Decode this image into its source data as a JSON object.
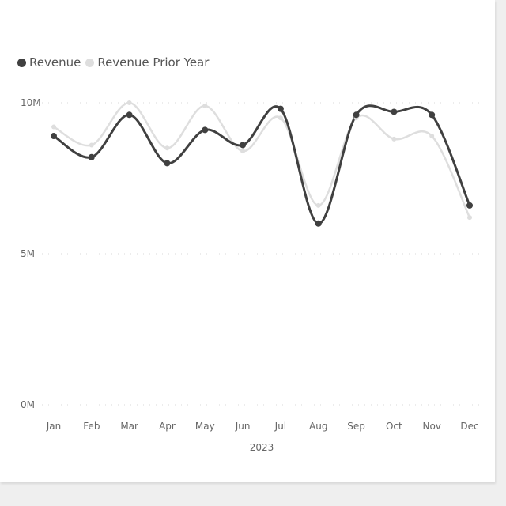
{
  "chart_data": {
    "type": "line",
    "categories": [
      "Jan",
      "Feb",
      "Mar",
      "Apr",
      "May",
      "Jun",
      "Jul",
      "Aug",
      "Sep",
      "Oct",
      "Nov",
      "Dec"
    ],
    "xlabel": "2023",
    "ylabel": "",
    "ylim": [
      0,
      10000000
    ],
    "y_ticks": [
      {
        "value": 0,
        "label": "0M"
      },
      {
        "value": 5000000,
        "label": "5M"
      },
      {
        "value": 10000000,
        "label": "10M"
      }
    ],
    "grid": true,
    "smooth": true,
    "legend_position": "top-left",
    "series": [
      {
        "name": "Revenue",
        "color": "#404040",
        "values": [
          8900000,
          8200000,
          9600000,
          8000000,
          9100000,
          8600000,
          9800000,
          6000000,
          9600000,
          9700000,
          9600000,
          6600000
        ]
      },
      {
        "name": "Revenue Prior Year",
        "color": "#dedede",
        "values": [
          9200000,
          8600000,
          10000000,
          8500000,
          9900000,
          8400000,
          9500000,
          6600000,
          9500000,
          8800000,
          8900000,
          6200000
        ]
      }
    ]
  }
}
